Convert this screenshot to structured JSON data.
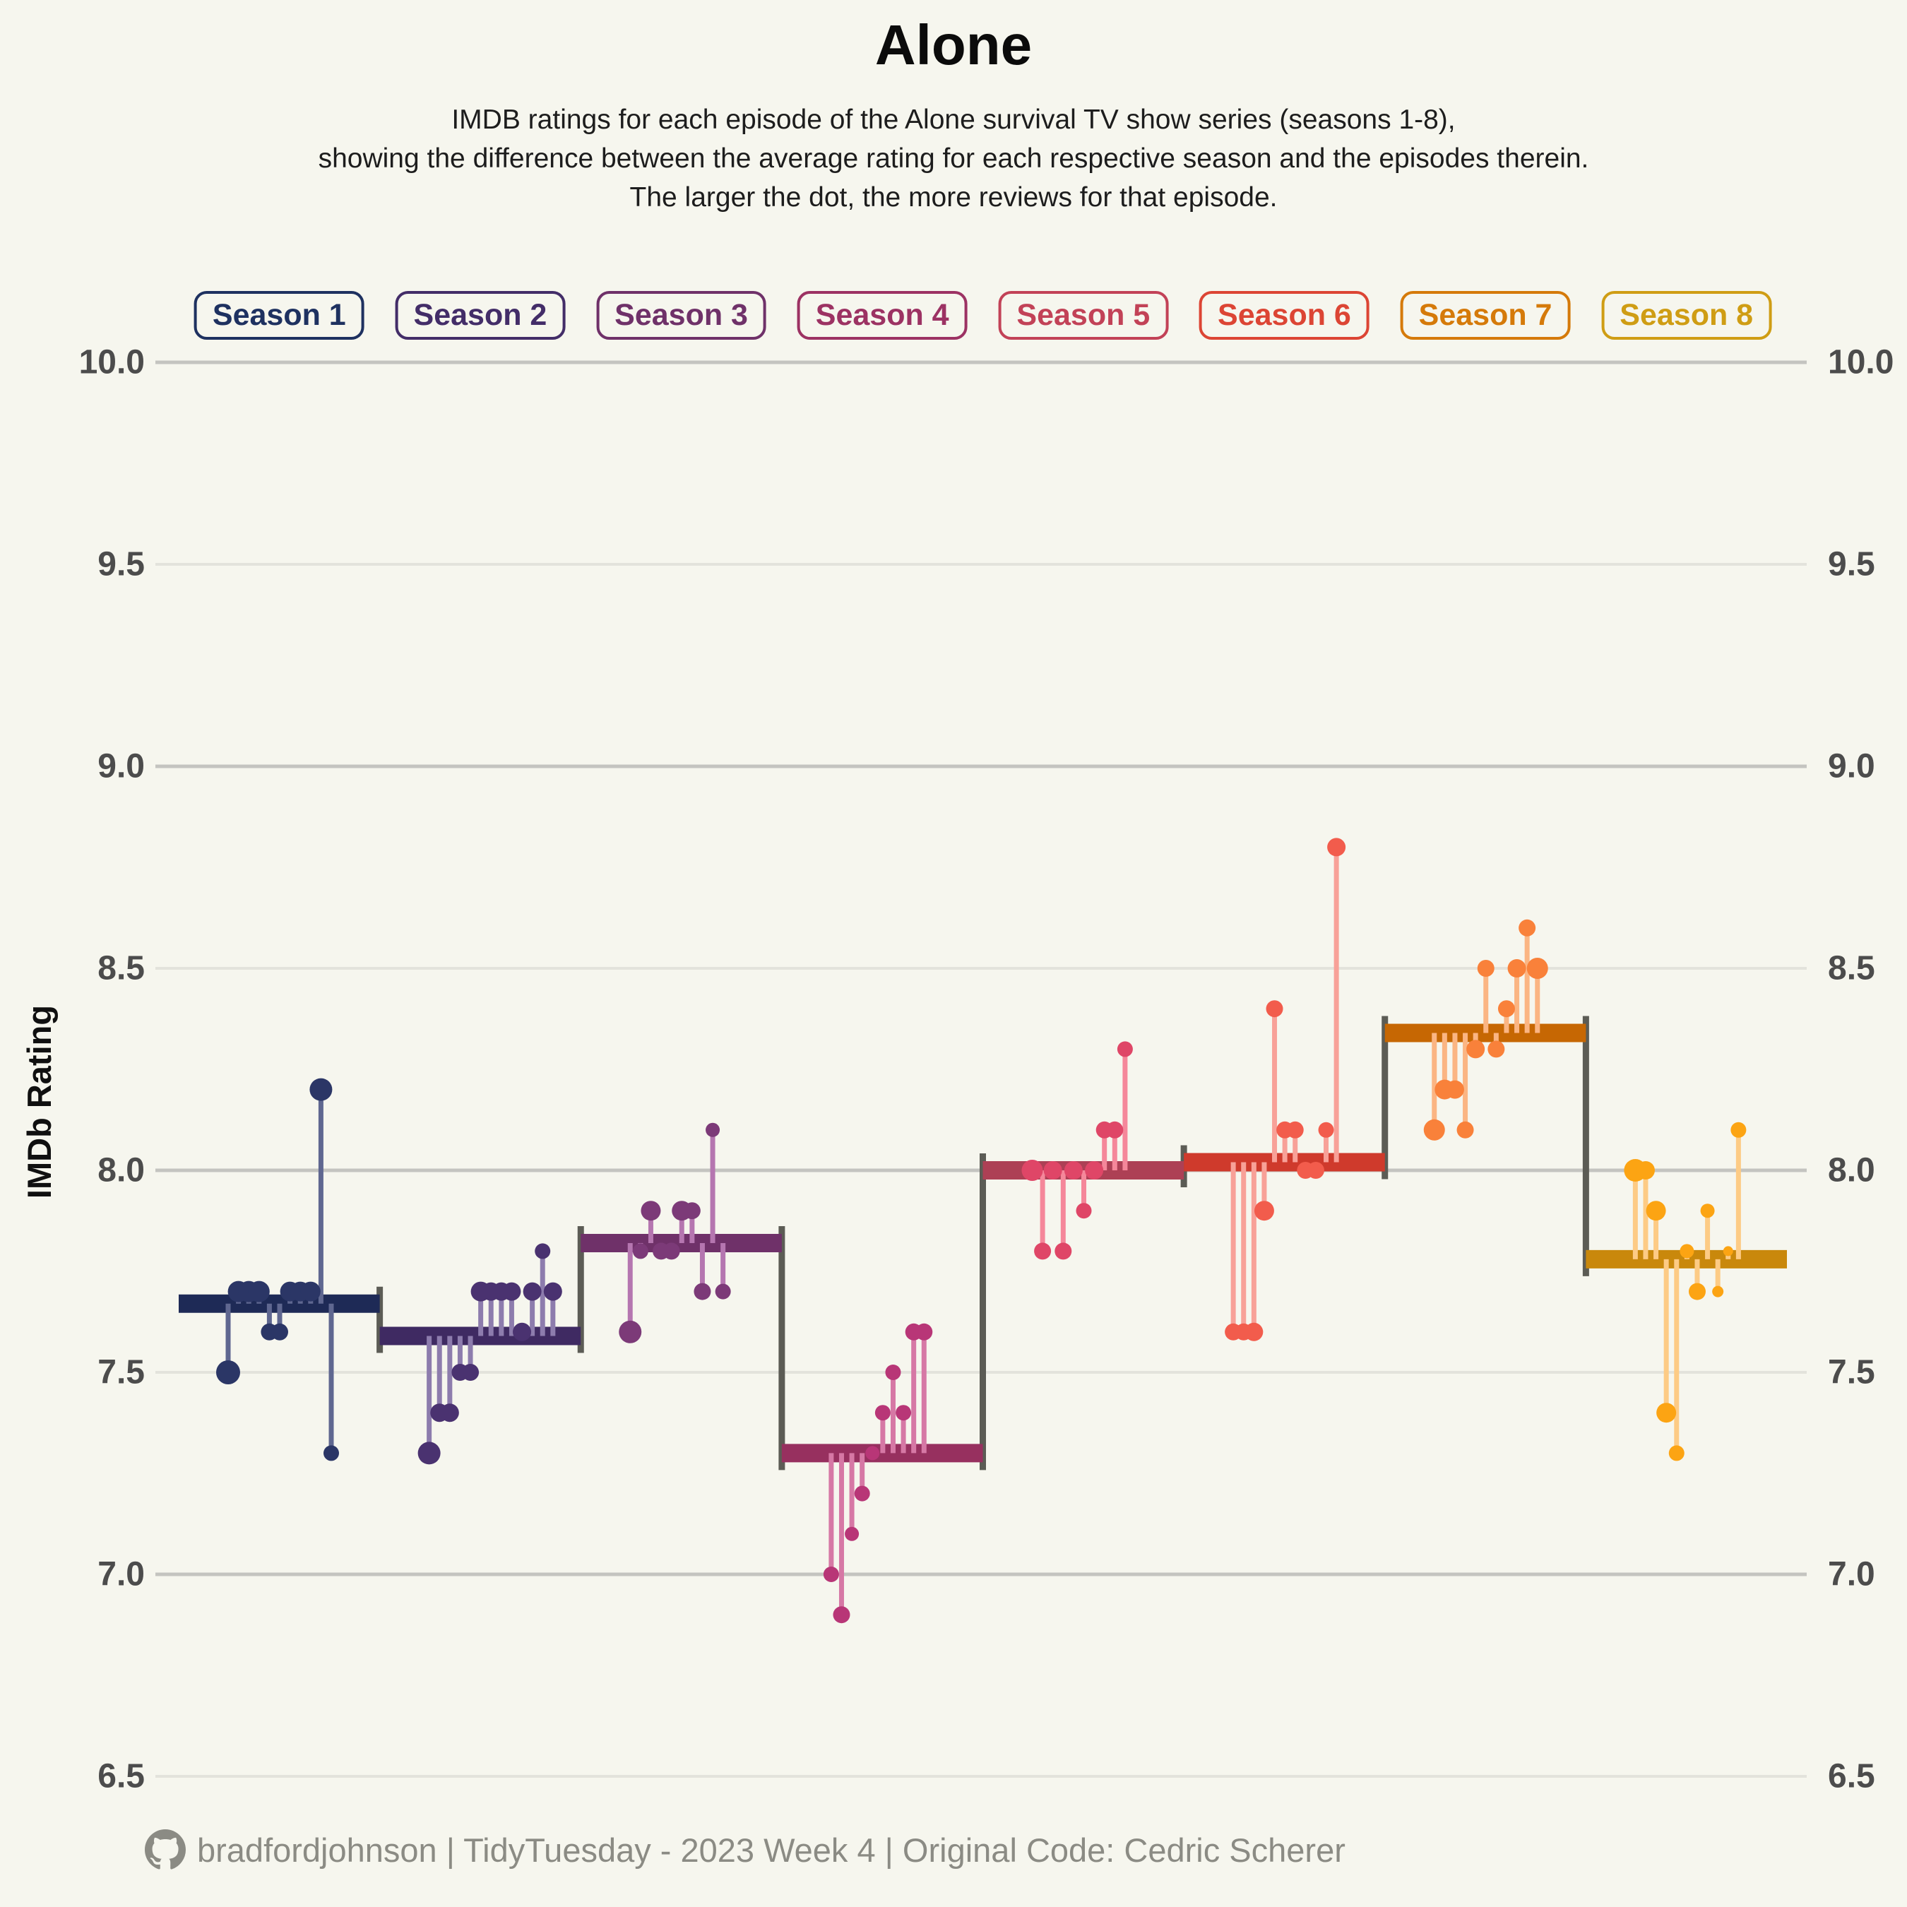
{
  "title": "Alone",
  "subtitle": [
    "IMDB ratings for each episode of the Alone survival TV show series (seasons 1-8),",
    "showing the difference between the average rating for each respective season and the episodes therein.",
    "The larger the dot, the more reviews for that episode."
  ],
  "y_axis_title": "IMDb Rating",
  "footer": {
    "icon": "github-icon",
    "text": "bradfordjohnson | TidyTuesday - 2023 Week 4 | Original Code: Cedric Scherer"
  },
  "colors": {
    "background": "#f6f6ee",
    "grid_major": "#c4c4c0",
    "grid_minor": "#e3e3dc",
    "axis_text": "#4c4c4c",
    "connector": "#5c5c55",
    "title_text": "#0b0b0b",
    "footer_text": "#8b8b84"
  },
  "chart_data": {
    "type": "scatter",
    "subtype": "lollipop-step",
    "title": "Alone",
    "ylabel": "IMDb Rating",
    "ylim": [
      6.5,
      10.0
    ],
    "yticks": [
      10.0,
      9.5,
      9.0,
      8.5,
      8.0,
      7.5,
      7.0,
      6.5
    ],
    "grid": true,
    "legend_position": "top",
    "note": "Each season drawn as horizontal average bar; episode dots connected by stems; dot size = number of reviews",
    "seasons": [
      {
        "label": "Season 1",
        "average": 7.67,
        "label_color": "#1e3160",
        "line_color": "#1e2a56",
        "dot_color": "#2b3666",
        "stem_color": "#5f6790",
        "episodes": [
          {
            "rating": 7.5,
            "size": 17
          },
          {
            "rating": 7.7,
            "size": 15
          },
          {
            "rating": 7.7,
            "size": 15
          },
          {
            "rating": 7.7,
            "size": 15
          },
          {
            "rating": 7.6,
            "size": 12
          },
          {
            "rating": 7.6,
            "size": 12
          },
          {
            "rating": 7.7,
            "size": 14
          },
          {
            "rating": 7.7,
            "size": 14
          },
          {
            "rating": 7.7,
            "size": 14
          },
          {
            "rating": 8.2,
            "size": 16
          },
          {
            "rating": 7.3,
            "size": 11
          }
        ]
      },
      {
        "label": "Season 2",
        "average": 7.59,
        "label_color": "#432d68",
        "line_color": "#3f2a62",
        "dot_color": "#4a3270",
        "stem_color": "#8d7cad",
        "episodes": [
          {
            "rating": 7.3,
            "size": 16
          },
          {
            "rating": 7.4,
            "size": 13
          },
          {
            "rating": 7.4,
            "size": 13
          },
          {
            "rating": 7.5,
            "size": 12
          },
          {
            "rating": 7.5,
            "size": 12
          },
          {
            "rating": 7.7,
            "size": 14
          },
          {
            "rating": 7.7,
            "size": 13
          },
          {
            "rating": 7.7,
            "size": 13
          },
          {
            "rating": 7.7,
            "size": 13
          },
          {
            "rating": 7.6,
            "size": 13
          },
          {
            "rating": 7.7,
            "size": 13
          },
          {
            "rating": 7.8,
            "size": 11
          },
          {
            "rating": 7.7,
            "size": 13
          }
        ]
      },
      {
        "label": "Season 3",
        "average": 7.82,
        "label_color": "#6f3169",
        "line_color": "#6f3169",
        "dot_color": "#7c3a78",
        "stem_color": "#b576b0",
        "episodes": [
          {
            "rating": 7.6,
            "size": 16
          },
          {
            "rating": 7.8,
            "size": 11
          },
          {
            "rating": 7.9,
            "size": 14
          },
          {
            "rating": 7.8,
            "size": 12
          },
          {
            "rating": 7.8,
            "size": 12
          },
          {
            "rating": 7.9,
            "size": 14
          },
          {
            "rating": 7.9,
            "size": 12
          },
          {
            "rating": 7.7,
            "size": 12
          },
          {
            "rating": 8.1,
            "size": 10
          },
          {
            "rating": 7.7,
            "size": 11
          }
        ]
      },
      {
        "label": "Season 4",
        "average": 7.3,
        "label_color": "#9c3263",
        "line_color": "#97305f",
        "dot_color": "#b83677",
        "stem_color": "#d678a5",
        "episodes": [
          {
            "rating": 7.0,
            "size": 11
          },
          {
            "rating": 6.9,
            "size": 12
          },
          {
            "rating": 7.1,
            "size": 10
          },
          {
            "rating": 7.2,
            "size": 11
          },
          {
            "rating": 7.3,
            "size": 10
          },
          {
            "rating": 7.4,
            "size": 11
          },
          {
            "rating": 7.5,
            "size": 11
          },
          {
            "rating": 7.4,
            "size": 11
          },
          {
            "rating": 7.6,
            "size": 12
          },
          {
            "rating": 7.6,
            "size": 12
          }
        ]
      },
      {
        "label": "Season 5",
        "average": 8.0,
        "label_color": "#c24257",
        "line_color": "#ad4055",
        "dot_color": "#df4667",
        "stem_color": "#f5879a",
        "episodes": [
          {
            "rating": 8.0,
            "size": 15
          },
          {
            "rating": 7.8,
            "size": 12
          },
          {
            "rating": 8.0,
            "size": 13
          },
          {
            "rating": 7.8,
            "size": 12
          },
          {
            "rating": 8.0,
            "size": 13
          },
          {
            "rating": 7.9,
            "size": 11
          },
          {
            "rating": 8.0,
            "size": 13
          },
          {
            "rating": 8.1,
            "size": 12
          },
          {
            "rating": 8.1,
            "size": 12
          },
          {
            "rating": 8.3,
            "size": 11
          }
        ]
      },
      {
        "label": "Season 6",
        "average": 8.02,
        "label_color": "#dc4534",
        "line_color": "#cf3a2c",
        "dot_color": "#f25c4c",
        "stem_color": "#f8a198",
        "episodes": [
          {
            "rating": 7.6,
            "size": 12
          },
          {
            "rating": 7.6,
            "size": 12
          },
          {
            "rating": 7.6,
            "size": 13
          },
          {
            "rating": 7.9,
            "size": 14
          },
          {
            "rating": 8.4,
            "size": 12
          },
          {
            "rating": 8.1,
            "size": 12
          },
          {
            "rating": 8.1,
            "size": 12
          },
          {
            "rating": 8.0,
            "size": 12
          },
          {
            "rating": 8.0,
            "size": 12
          },
          {
            "rating": 8.1,
            "size": 11
          },
          {
            "rating": 8.8,
            "size": 13
          }
        ]
      },
      {
        "label": "Season 7",
        "average": 8.34,
        "label_color": "#d57a0a",
        "line_color": "#c66703",
        "dot_color": "#f9813a",
        "stem_color": "#fbb583",
        "episodes": [
          {
            "rating": 8.1,
            "size": 15
          },
          {
            "rating": 8.2,
            "size": 14
          },
          {
            "rating": 8.2,
            "size": 13
          },
          {
            "rating": 8.1,
            "size": 12
          },
          {
            "rating": 8.3,
            "size": 13
          },
          {
            "rating": 8.5,
            "size": 12
          },
          {
            "rating": 8.3,
            "size": 12
          },
          {
            "rating": 8.4,
            "size": 12
          },
          {
            "rating": 8.5,
            "size": 13
          },
          {
            "rating": 8.6,
            "size": 12
          },
          {
            "rating": 8.5,
            "size": 15
          }
        ]
      },
      {
        "label": "Season 8",
        "average": 7.78,
        "label_color": "#cf9d14",
        "line_color": "#c9880c",
        "dot_color": "#fca413",
        "stem_color": "#fdcb85",
        "episodes": [
          {
            "rating": 8.0,
            "size": 16
          },
          {
            "rating": 8.0,
            "size": 13
          },
          {
            "rating": 7.9,
            "size": 14
          },
          {
            "rating": 7.4,
            "size": 14
          },
          {
            "rating": 7.3,
            "size": 11
          },
          {
            "rating": 7.8,
            "size": 10
          },
          {
            "rating": 7.7,
            "size": 12
          },
          {
            "rating": 7.9,
            "size": 10
          },
          {
            "rating": 7.7,
            "size": 8
          },
          {
            "rating": 7.8,
            "size": 7
          },
          {
            "rating": 8.1,
            "size": 11
          }
        ]
      }
    ]
  }
}
